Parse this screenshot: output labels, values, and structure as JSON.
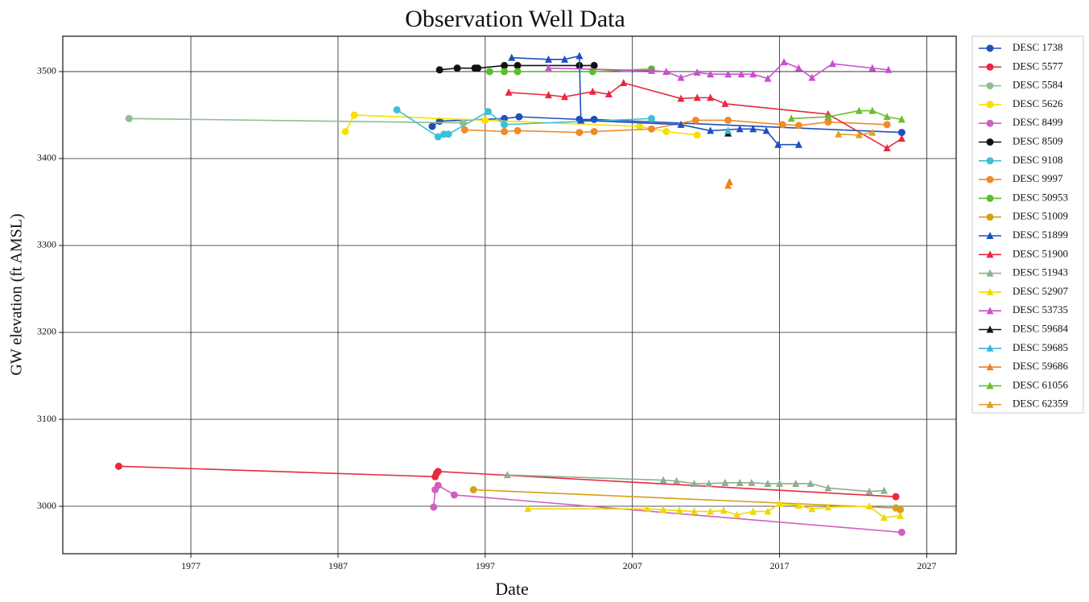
{
  "chart_data": {
    "type": "line",
    "title": "Observation Well Data",
    "x_label": "Date",
    "y_label": "GW elevation (ft AMSL)",
    "xlim": [
      1968.3,
      2029.0
    ],
    "ylim": [
      2945.4,
      3540.7
    ],
    "xticks": [
      1977,
      1987,
      1997,
      2007,
      2017,
      2027
    ],
    "yticks": [
      3000,
      3100,
      3200,
      3300,
      3400,
      3500
    ],
    "grid": true,
    "legend": "outside right",
    "series": [
      {
        "name": "DESC 1738",
        "color": "#1f4fbf",
        "marker": "circle",
        "x": [
          1993.4,
          1993.9,
          1998.3,
          1999.3,
          2003.4,
          2004.4,
          2025.3
        ],
        "values": [
          3437,
          3443,
          3446,
          3448,
          3445,
          3445,
          3430
        ]
      },
      {
        "name": "DESC 5577",
        "color": "#e8293f",
        "marker": "circle",
        "x": [
          1972.1,
          1993.6,
          1993.7,
          1993.8,
          2024.9
        ],
        "values": [
          3046,
          3034,
          3038,
          3040,
          3011
        ]
      },
      {
        "name": "DESC 5584",
        "color": "#8fbf8f",
        "marker": "circle",
        "x": [
          1972.8,
          1995.5
        ],
        "values": [
          3446,
          3441
        ]
      },
      {
        "name": "DESC 5626",
        "color": "#f5e000",
        "marker": "circle",
        "x": [
          1987.5,
          1988.1,
          1997.0,
          2007.5,
          2009.3,
          2011.4
        ],
        "values": [
          3431,
          3450,
          3444,
          3437,
          3431,
          3427
        ]
      },
      {
        "name": "DESC 8499",
        "color": "#d060c0",
        "marker": "circle",
        "x": [
          1993.5,
          1993.6,
          1993.8,
          1994.9,
          2025.3
        ],
        "values": [
          2999,
          3019,
          3024,
          3013,
          2970
        ]
      },
      {
        "name": "DESC 8509",
        "color": "#111111",
        "marker": "circle",
        "x": [
          1993.9,
          1995.1,
          1996.3,
          1996.5,
          1998.3,
          1999.2,
          2003.4,
          2004.4
        ],
        "values": [
          3502,
          3504,
          3504,
          3504,
          3507,
          3507,
          3507,
          3507
        ]
      },
      {
        "name": "DESC 9108",
        "color": "#3cc0d8",
        "marker": "circle",
        "x": [
          1991.0,
          1993.8,
          1994.2,
          1994.5,
          1997.2,
          1998.3,
          2008.3
        ],
        "values": [
          3456,
          3425,
          3428,
          3428,
          3454,
          3439,
          3446
        ]
      },
      {
        "name": "DESC 9997",
        "color": "#f08a28",
        "marker": "circle",
        "x": [
          1995.6,
          1998.3,
          1999.2,
          2003.4,
          2004.4,
          2008.3,
          2011.3,
          2013.5,
          2017.2,
          2018.3,
          2020.3,
          2024.3
        ],
        "values": [
          3433,
          3431,
          3432,
          3430,
          3431,
          3434,
          3444,
          3444,
          3439,
          3438,
          3442,
          3439
        ]
      },
      {
        "name": "DESC 50953",
        "color": "#5abf2a",
        "marker": "circle",
        "x": [
          1997.3,
          1998.3,
          1999.2,
          2004.3,
          2008.3
        ],
        "values": [
          3500,
          3500,
          3500,
          3500,
          3503
        ]
      },
      {
        "name": "DESC 51009",
        "color": "#d4a017",
        "marker": "circle",
        "x": [
          1996.2,
          2024.9,
          2025.2
        ],
        "values": [
          3019,
          2998,
          2996
        ]
      },
      {
        "name": "DESC 51899",
        "color": "#1f4fbf",
        "marker": "triangle",
        "x": [
          1998.8,
          2001.3,
          2002.4,
          2003.4,
          2003.5,
          2010.3,
          2012.3,
          2014.3,
          2015.2,
          2016.1,
          2016.9,
          2018.3
        ],
        "values": [
          3516,
          3514,
          3514,
          3518,
          3444,
          3439,
          3432,
          3434,
          3434,
          3432,
          3416,
          3416
        ]
      },
      {
        "name": "DESC 51900",
        "color": "#e8293f",
        "marker": "triangle",
        "x": [
          1998.6,
          2001.3,
          2002.4,
          2004.3,
          2005.4,
          2006.4,
          2010.3,
          2011.4,
          2012.3,
          2013.3,
          2020.3,
          2024.3,
          2025.3
        ],
        "values": [
          3476,
          3473,
          3471,
          3477,
          3474,
          3487,
          3469,
          3470,
          3470,
          3463,
          3451,
          3412,
          3423
        ]
      },
      {
        "name": "DESC 51943",
        "color": "#8fae8f",
        "marker": "triangle",
        "x": [
          1998.5,
          2009.1,
          2010.0,
          2011.2,
          2012.2,
          2013.3,
          2014.3,
          2015.1,
          2016.2,
          2017.0,
          2018.1,
          2019.1,
          2020.3,
          2023.1,
          2024.1
        ],
        "values": [
          3036,
          3030,
          3029,
          3026,
          3026,
          3027,
          3027,
          3027,
          3026,
          3026,
          3026,
          3026,
          3021,
          3017,
          3018
        ]
      },
      {
        "name": "DESC 52907",
        "color": "#f0d800",
        "marker": "triangle",
        "x": [
          1999.9,
          2008.0,
          2009.1,
          2010.2,
          2011.2,
          2012.3,
          2013.2,
          2014.1,
          2015.2,
          2016.2,
          2017.0,
          2018.3,
          2019.2,
          2020.3,
          2023.1,
          2024.1,
          2025.2
        ],
        "values": [
          2997,
          2997,
          2996,
          2995,
          2994,
          2994,
          2995,
          2990,
          2994,
          2994,
          3003,
          3001,
          2997,
          2999,
          3000,
          2987,
          2989
        ]
      },
      {
        "name": "DESC 53735",
        "color": "#c850d0",
        "marker": "triangle",
        "x": [
          2001.3,
          2008.3,
          2009.3,
          2010.3,
          2011.4,
          2012.3,
          2013.5,
          2014.4,
          2015.2,
          2016.2,
          2017.3,
          2018.3,
          2019.2,
          2020.6,
          2023.3,
          2024.4
        ],
        "values": [
          3504,
          3501,
          3500,
          3493,
          3499,
          3497,
          3497,
          3497,
          3497,
          3492,
          3511,
          3504,
          3493,
          3509,
          3504,
          3502
        ]
      },
      {
        "name": "DESC 59684",
        "color": "#111111",
        "marker": "triangle",
        "x": [
          2013.5
        ],
        "values": [
          3429
        ]
      },
      {
        "name": "DESC 59685",
        "color": "#3cb8e0",
        "marker": "triangle",
        "x": [
          2013.5
        ],
        "values": [
          3432
        ]
      },
      {
        "name": "DESC 59686",
        "color": "#f08020",
        "marker": "triangle",
        "x": [
          2013.5,
          2013.6
        ],
        "values": [
          3369,
          3373
        ]
      },
      {
        "name": "DESC 61056",
        "color": "#6abf2a",
        "marker": "triangle",
        "x": [
          2017.8,
          2020.3,
          2022.4,
          2023.3,
          2024.3,
          2025.3
        ],
        "values": [
          3446,
          3448,
          3455,
          3455,
          3448,
          3445
        ]
      },
      {
        "name": "DESC 62359",
        "color": "#e0a020",
        "marker": "triangle",
        "x": [
          2021.0,
          2022.4,
          2023.3
        ],
        "values": [
          3428,
          3427,
          3430
        ]
      }
    ]
  }
}
